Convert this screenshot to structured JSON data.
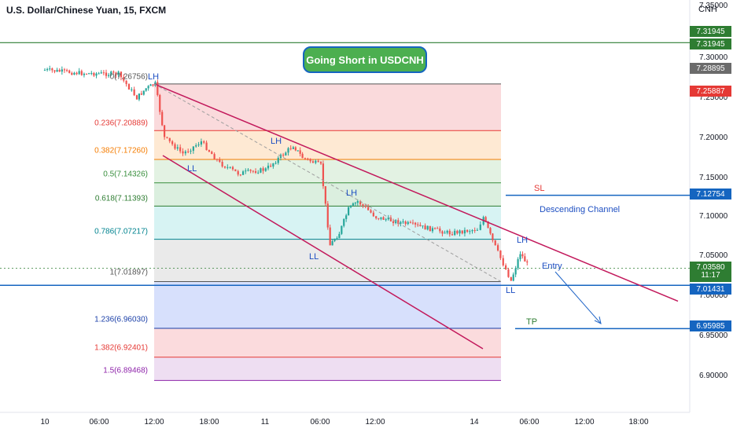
{
  "header": {
    "title": "U.S. Dollar/Chinese Yuan, 15, FXCM",
    "currency": "CNH",
    "idea_title": "Going Short in USDCNH"
  },
  "price_axis": {
    "ticks": [
      "7.35000",
      "7.30000",
      "7.25000",
      "7.20000",
      "7.15000",
      "7.10000",
      "7.05000",
      "7.00000",
      "6.95000",
      "6.90000"
    ],
    "labels": [
      {
        "text": "7.31945",
        "color": "#2e7d32"
      },
      {
        "text": "7.31945",
        "color": "#2e7d32"
      },
      {
        "text": "7.28895",
        "color": "#6b6b6b"
      },
      {
        "text": "7.25887",
        "color": "#e53935"
      },
      {
        "text": "7.12754",
        "color": "#1565c0"
      },
      {
        "text": "7.03580",
        "color": "#2e7d32"
      },
      {
        "text": "7.01431",
        "color": "#1565c0"
      },
      {
        "text": "6.95985",
        "color": "#1565c0"
      }
    ],
    "countdown": "11:17"
  },
  "time_axis": {
    "ticks": [
      "10",
      "06:00",
      "12:00",
      "18:00",
      "11",
      "06:00",
      "12:00",
      "14",
      "06:00",
      "12:00",
      "18:00"
    ]
  },
  "fibonacci": [
    {
      "text": "0(7.26756)",
      "color": "#555555"
    },
    {
      "text": "0.236(7.20889)",
      "color": "#e53935"
    },
    {
      "text": "0.382(7.17260)",
      "color": "#f57c00"
    },
    {
      "text": "0.5(7.14326)",
      "color": "#388e3c"
    },
    {
      "text": "0.618(7.11393)",
      "color": "#2e7d32"
    },
    {
      "text": "0.786(7.07217)",
      "color": "#00838f"
    },
    {
      "text": "1(7.01897)",
      "color": "#555555"
    },
    {
      "text": "1.236(6.96030)",
      "color": "#1a3fa8"
    },
    {
      "text": "1.382(6.92401)",
      "color": "#e53935"
    },
    {
      "text": "1.5(6.89468)",
      "color": "#8e24aa"
    }
  ],
  "annotations": {
    "lh": "LH",
    "ll": "LL",
    "sl": "SL",
    "tp": "TP",
    "entry": "Entry",
    "channel": "Descending Channel"
  },
  "chart_data": {
    "type": "candlestick",
    "symbol": "USDCNH",
    "interval": "15",
    "price_range": [
      6.87,
      7.355
    ],
    "price_series": [
      {
        "t": "10 00:00",
        "close": 7.285
      },
      {
        "t": "10 04:00",
        "close": 7.281
      },
      {
        "t": "10 08:00",
        "close": 7.28
      },
      {
        "t": "10 10:00",
        "close": 7.25
      },
      {
        "t": "10 11:00",
        "close": 7.262
      },
      {
        "t": "10 12:00",
        "close": 7.2676
      },
      {
        "t": "10 13:00",
        "close": 7.2
      },
      {
        "t": "10 15:00",
        "close": 7.18
      },
      {
        "t": "10 17:00",
        "close": 7.195
      },
      {
        "t": "10 19:00",
        "close": 7.168
      },
      {
        "t": "10 21:00",
        "close": 7.155
      },
      {
        "t": "11 00:00",
        "close": 7.16
      },
      {
        "t": "11 03:00",
        "close": 7.19
      },
      {
        "t": "11 04:00",
        "close": 7.175
      },
      {
        "t": "11 06:00",
        "close": 7.165
      },
      {
        "t": "11 07:00",
        "close": 7.065
      },
      {
        "t": "11 08:00",
        "close": 7.08
      },
      {
        "t": "11 09:00",
        "close": 7.11
      },
      {
        "t": "11 10:00",
        "close": 7.12
      },
      {
        "t": "11 12:00",
        "close": 7.1
      },
      {
        "t": "11 16:00",
        "close": 7.09
      },
      {
        "t": "11 20:00",
        "close": 7.08
      },
      {
        "t": "11 23:00",
        "close": 7.085
      },
      {
        "t": "14 01:00",
        "close": 7.1
      },
      {
        "t": "14 02:00",
        "close": 7.07
      },
      {
        "t": "14 04:00",
        "close": 7.02
      },
      {
        "t": "14 05:00",
        "close": 7.055
      },
      {
        "t": "14 06:00",
        "close": 7.036
      }
    ],
    "fib_levels": [
      {
        "ratio": 0,
        "price": 7.26756
      },
      {
        "ratio": 0.236,
        "price": 7.20889
      },
      {
        "ratio": 0.382,
        "price": 7.1726
      },
      {
        "ratio": 0.5,
        "price": 7.14326
      },
      {
        "ratio": 0.618,
        "price": 7.11393
      },
      {
        "ratio": 0.786,
        "price": 7.07217
      },
      {
        "ratio": 1,
        "price": 7.01897
      },
      {
        "ratio": 1.236,
        "price": 6.9603
      },
      {
        "ratio": 1.382,
        "price": 6.92401
      },
      {
        "ratio": 1.5,
        "price": 6.89468
      }
    ],
    "horizontal_lines": [
      {
        "price": 7.31945,
        "color": "#2e7d32"
      },
      {
        "price": 7.01431,
        "color": "#1565c0"
      }
    ],
    "stop_loss": 7.12754,
    "take_profit": 6.95985,
    "last_price": 7.0358
  }
}
